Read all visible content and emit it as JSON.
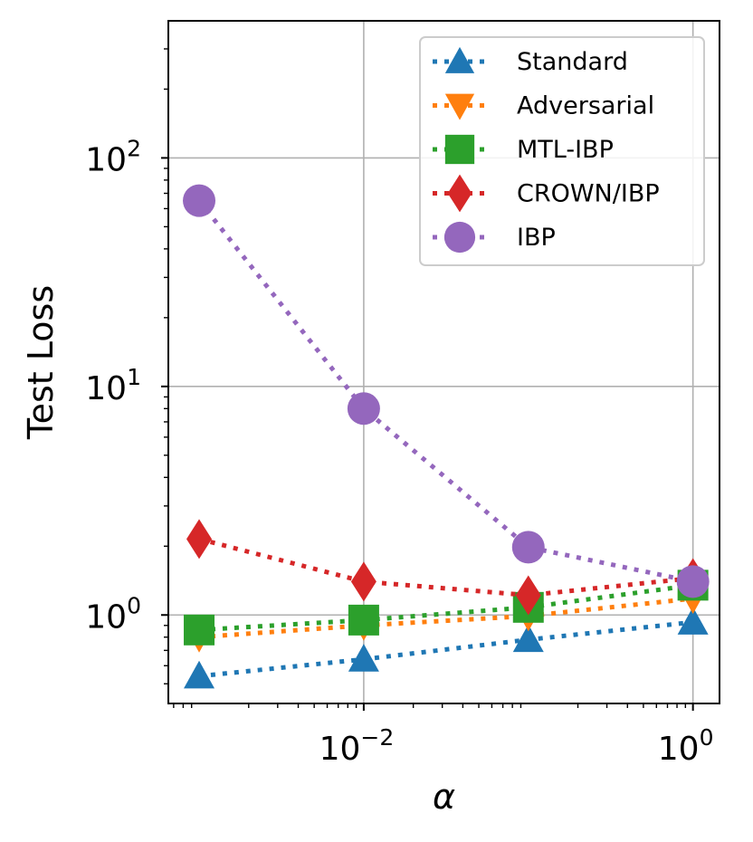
{
  "chart_data": {
    "type": "line",
    "title": "",
    "xlabel": "α",
    "ylabel": "Test Loss",
    "xscale": "log",
    "yscale": "log",
    "xlim": [
      0.00065,
      1.45
    ],
    "ylim": [
      0.41,
      398
    ],
    "grid": true,
    "legend_position": "top-right",
    "xticks": [
      {
        "value": 0.01,
        "base": "10",
        "exp": "−2"
      },
      {
        "value": 1,
        "base": "10",
        "exp": "0"
      }
    ],
    "yticks": [
      {
        "value": 1,
        "base": "10",
        "exp": "0"
      },
      {
        "value": 10,
        "base": "10",
        "exp": "1"
      },
      {
        "value": 100,
        "base": "10",
        "exp": "2"
      }
    ],
    "x": [
      0.001,
      0.01,
      0.1,
      1
    ],
    "series": [
      {
        "name": "Standard",
        "color": "#1f77b4",
        "marker": "triangle-up",
        "values": [
          0.54,
          0.64,
          0.78,
          0.93
        ]
      },
      {
        "name": "Adversarial",
        "color": "#ff7f0e",
        "marker": "triangle-down",
        "values": [
          0.8,
          0.9,
          0.99,
          1.18
        ]
      },
      {
        "name": "MTL-IBP",
        "color": "#2ca02c",
        "marker": "square",
        "values": [
          0.86,
          0.95,
          1.08,
          1.35
        ]
      },
      {
        "name": "CROWN/IBP",
        "color": "#d62728",
        "marker": "diamond",
        "values": [
          2.15,
          1.4,
          1.22,
          1.45
        ]
      },
      {
        "name": "IBP",
        "color": "#9467bd",
        "marker": "circle",
        "values": [
          65,
          8,
          1.98,
          1.4
        ]
      }
    ]
  }
}
